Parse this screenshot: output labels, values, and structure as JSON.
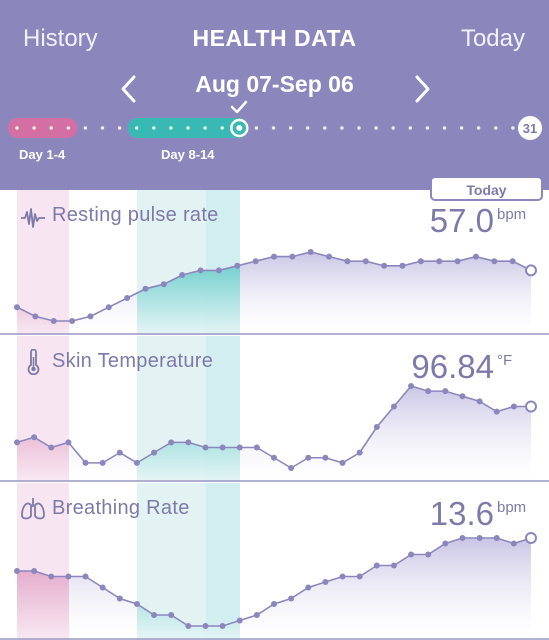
{
  "header": {
    "left_link": "History",
    "title": "HEALTH DATA",
    "right_link": "Today",
    "range_label": "Aug 07-Sep 06",
    "day_labels": [
      "Day 1-4",
      "Day 8-14"
    ],
    "end_day": "31",
    "selected_day": 14,
    "highlight_ranges": [
      {
        "from": 1,
        "to": 4,
        "color": "#d46fa3"
      },
      {
        "from": 8,
        "to": 14,
        "color": "#39b9b4"
      }
    ]
  },
  "today_button": "Today",
  "metrics": [
    {
      "title": "Resting pulse rate",
      "icon": "pulse-wave-icon",
      "value": "57.0",
      "unit": "bpm",
      "series": [
        4,
        2,
        1,
        1,
        2,
        4,
        6,
        8,
        9,
        11,
        12,
        12,
        13,
        14,
        15,
        15,
        16,
        15,
        14,
        14,
        13,
        13,
        14,
        14,
        14,
        15,
        14,
        14,
        12
      ]
    },
    {
      "title": "Skin Temperature",
      "icon": "thermometer-icon",
      "value": "96.84",
      "unit": "°F",
      "series": [
        5,
        6,
        4,
        5,
        1,
        1,
        3,
        1,
        3,
        5,
        5,
        4,
        4,
        4,
        4,
        2,
        0,
        2,
        2,
        1,
        3,
        8,
        12,
        16,
        15,
        15,
        14,
        13,
        11,
        12,
        12
      ]
    },
    {
      "title": "Breathing Rate",
      "icon": "lungs-icon",
      "value": "13.6",
      "unit": "bpm",
      "series": [
        8,
        8,
        7,
        7,
        7,
        5,
        3,
        2,
        0,
        0,
        -2,
        -2,
        -2,
        -1,
        0,
        2,
        3,
        5,
        6,
        7,
        7,
        9,
        9,
        11,
        11,
        13,
        14,
        14,
        14,
        13,
        14
      ]
    }
  ],
  "colors": {
    "header_bg": "#8b87bd",
    "line": "#8b87bd",
    "pink_band": "#f7e6f1",
    "teal_band": "#e3f3f4",
    "pink_fill": "#dd85b2",
    "teal_fill": "#4cc8c2"
  }
}
